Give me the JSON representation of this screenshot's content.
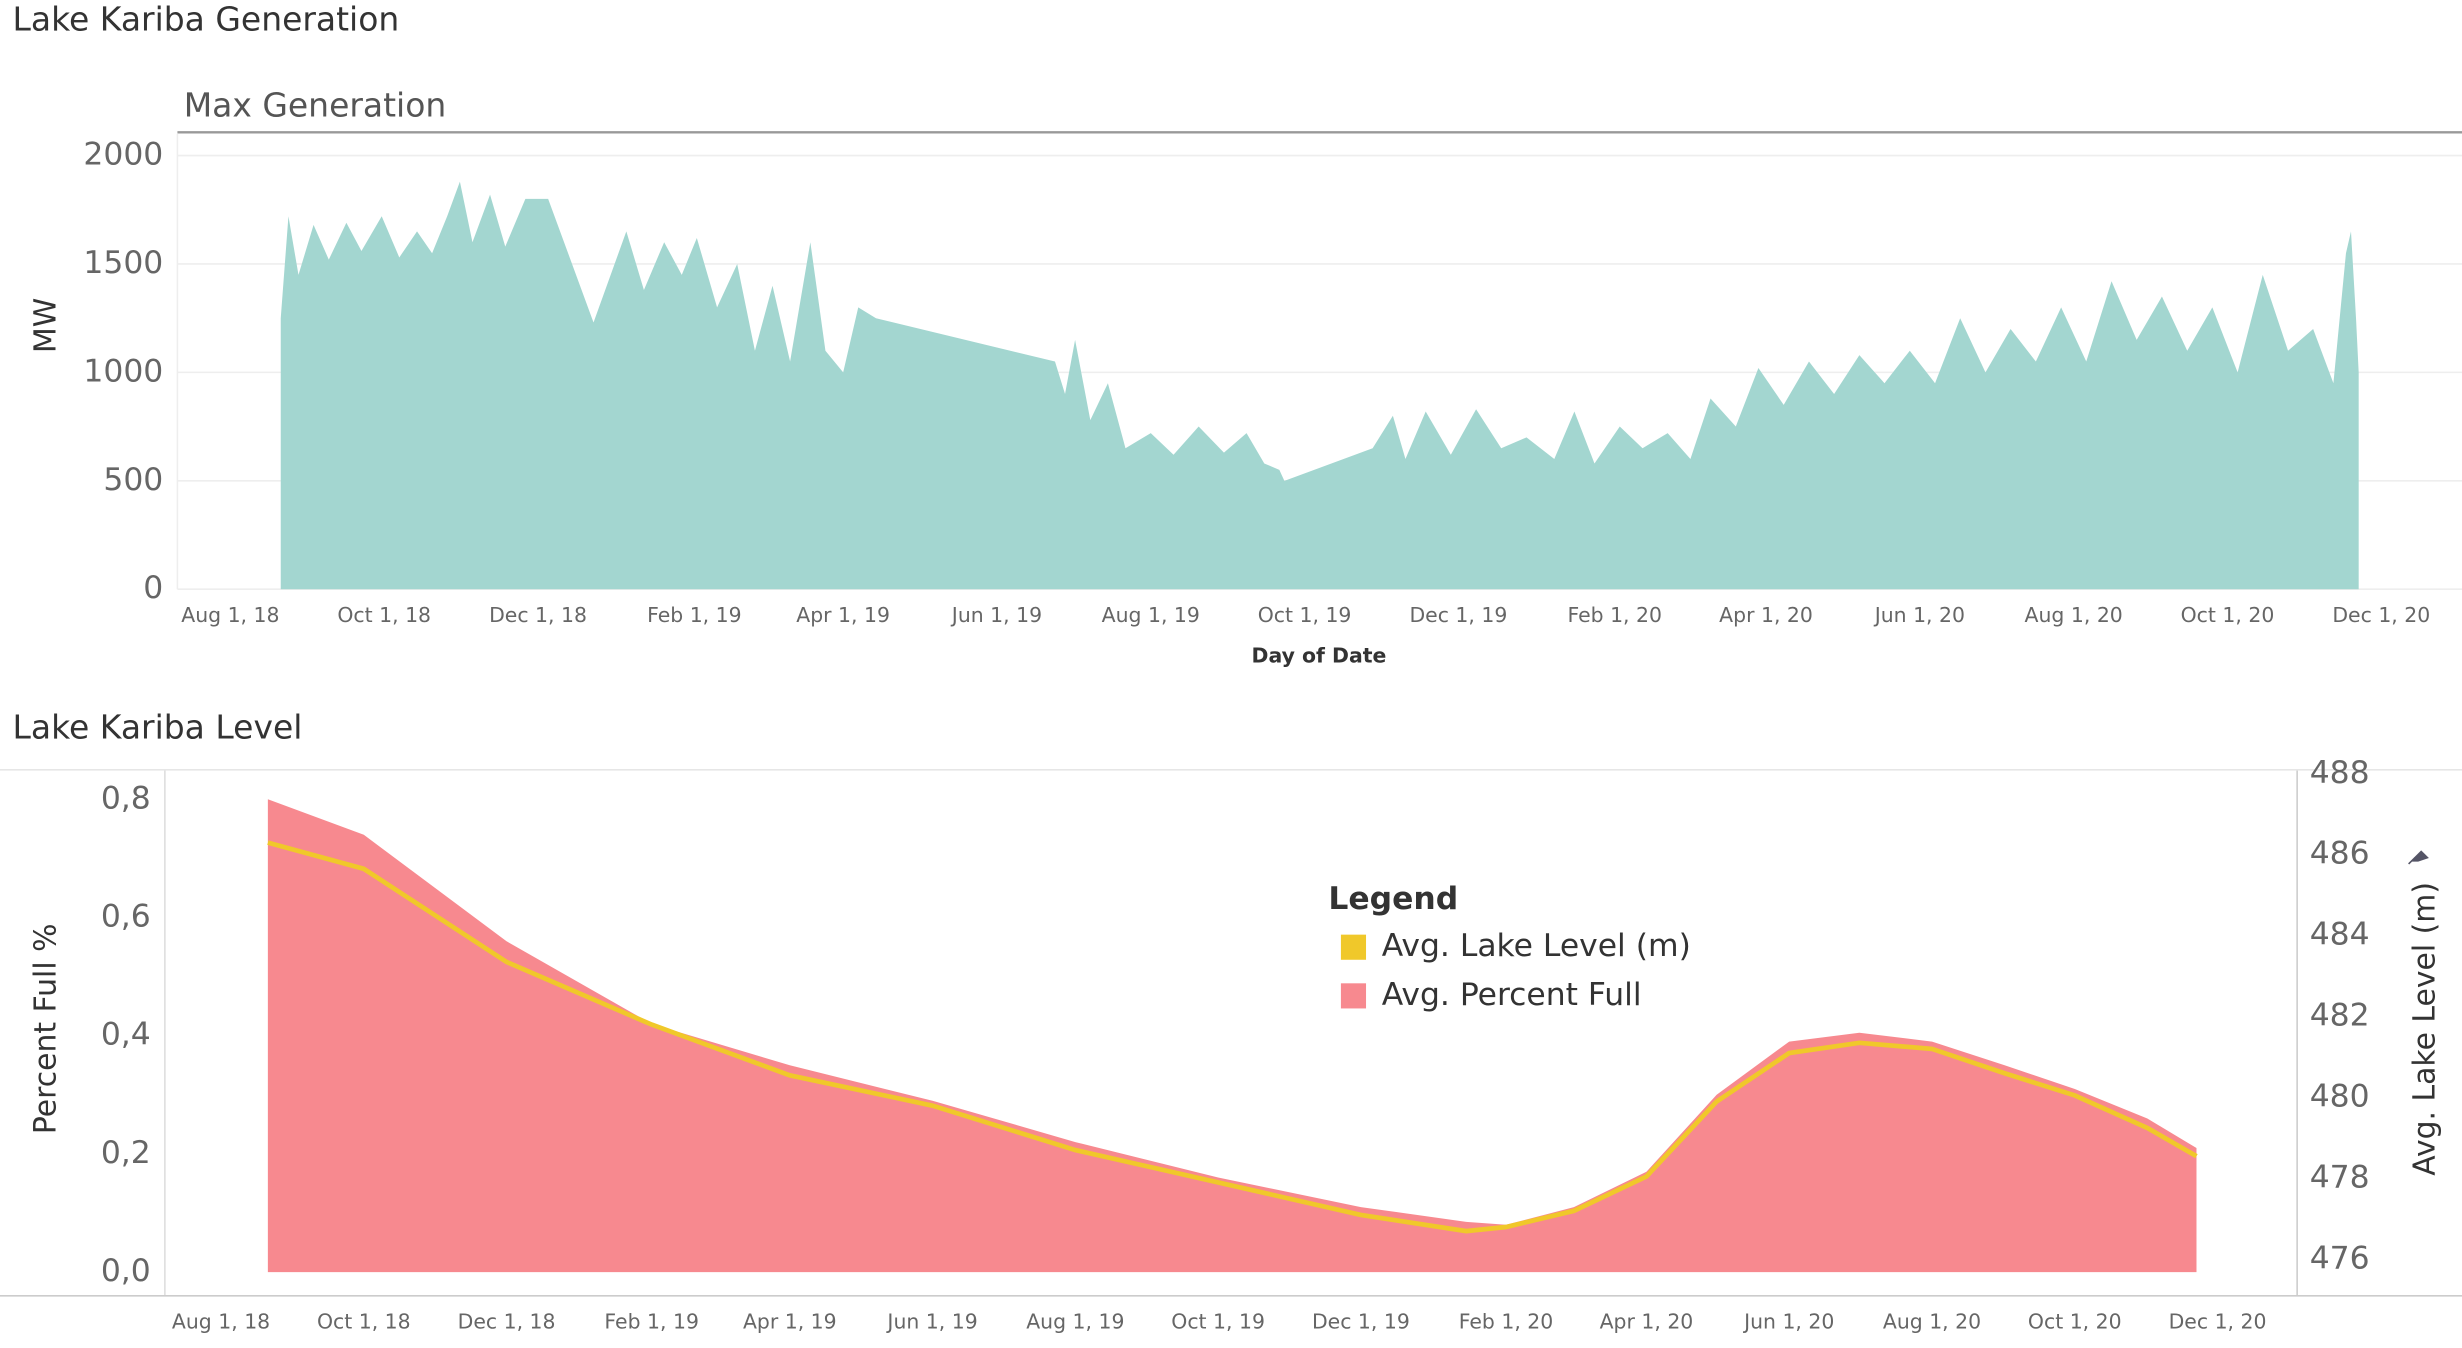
{
  "chart_data": [
    {
      "type": "area",
      "title": "Lake Kariba Generation",
      "subtitle": "Max Generation",
      "y_label": "MW",
      "x_label": "Day of Date",
      "x": [
        "2018-08-21",
        "2018-08-24",
        "2018-08-28",
        "2018-09-03",
        "2018-09-09",
        "2018-09-16",
        "2018-09-22",
        "2018-09-30",
        "2018-10-07",
        "2018-10-14",
        "2018-10-20",
        "2018-10-26",
        "2018-10-31",
        "2018-11-05",
        "2018-11-12",
        "2018-11-18",
        "2018-11-26",
        "2018-12-05",
        "2018-12-23",
        "2019-01-05",
        "2019-01-12",
        "2019-01-20",
        "2019-01-27",
        "2019-02-02",
        "2019-02-10",
        "2019-02-18",
        "2019-02-25",
        "2019-03-04",
        "2019-03-11",
        "2019-03-19",
        "2019-03-25",
        "2019-04-01",
        "2019-04-07",
        "2019-04-14",
        "2019-06-24",
        "2019-06-28",
        "2019-07-02",
        "2019-07-08",
        "2019-07-15",
        "2019-07-22",
        "2019-08-01",
        "2019-08-10",
        "2019-08-20",
        "2019-08-30",
        "2019-09-08",
        "2019-09-15",
        "2019-09-21",
        "2019-09-23",
        "2019-10-28",
        "2019-11-05",
        "2019-11-10",
        "2019-11-18",
        "2019-11-28",
        "2019-12-08",
        "2019-12-18",
        "2019-12-28",
        "2020-01-08",
        "2020-01-16",
        "2020-01-24",
        "2020-02-03",
        "2020-02-12",
        "2020-02-22",
        "2020-03-02",
        "2020-03-10",
        "2020-03-20",
        "2020-03-29",
        "2020-04-08",
        "2020-04-18",
        "2020-04-28",
        "2020-05-08",
        "2020-05-18",
        "2020-05-28",
        "2020-06-07",
        "2020-06-17",
        "2020-06-27",
        "2020-07-07",
        "2020-07-17",
        "2020-07-27",
        "2020-08-06",
        "2020-08-16",
        "2020-08-26",
        "2020-09-05",
        "2020-09-15",
        "2020-09-25",
        "2020-10-05",
        "2020-10-15",
        "2020-10-25",
        "2020-11-04",
        "2020-11-12",
        "2020-11-17",
        "2020-11-19",
        "2020-11-21",
        "2020-11-22"
      ],
      "series": [
        {
          "name": "Max Generation",
          "color": "#a3d6d0",
          "mark": "area",
          "axis": "y",
          "values": [
            1250,
            1720,
            1450,
            1680,
            1520,
            1690,
            1560,
            1720,
            1530,
            1650,
            1550,
            1720,
            1880,
            1600,
            1820,
            1580,
            1800,
            1800,
            1230,
            1650,
            1380,
            1600,
            1450,
            1620,
            1300,
            1500,
            1100,
            1400,
            1050,
            1600,
            1100,
            1000,
            1300,
            1250,
            1050,
            900,
            1150,
            780,
            950,
            650,
            720,
            620,
            750,
            630,
            720,
            580,
            550,
            500,
            650,
            800,
            600,
            820,
            620,
            830,
            650,
            700,
            600,
            820,
            580,
            750,
            650,
            720,
            600,
            880,
            750,
            1020,
            850,
            1050,
            900,
            1080,
            950,
            1100,
            950,
            1250,
            1000,
            1200,
            1050,
            1300,
            1050,
            1420,
            1150,
            1350,
            1100,
            1300,
            1000,
            1450,
            1100,
            1200,
            950,
            1550,
            1650,
            1250,
            1000
          ]
        }
      ],
      "xlim": [
        "2018-07-11",
        "2021-01-02"
      ],
      "xticks": [
        {
          "value": "2018-08-01",
          "label": "Aug 1, 18"
        },
        {
          "value": "2018-10-01",
          "label": "Oct 1, 18"
        },
        {
          "value": "2018-12-01",
          "label": "Dec 1, 18"
        },
        {
          "value": "2019-02-01",
          "label": "Feb 1, 19"
        },
        {
          "value": "2019-04-01",
          "label": "Apr 1, 19"
        },
        {
          "value": "2019-06-01",
          "label": "Jun 1, 19"
        },
        {
          "value": "2019-08-01",
          "label": "Aug 1, 19"
        },
        {
          "value": "2019-10-01",
          "label": "Oct 1, 19"
        },
        {
          "value": "2019-12-01",
          "label": "Dec 1, 19"
        },
        {
          "value": "2020-02-01",
          "label": "Feb 1, 20"
        },
        {
          "value": "2020-04-01",
          "label": "Apr 1, 20"
        },
        {
          "value": "2020-06-01",
          "label": "Jun 1, 20"
        },
        {
          "value": "2020-08-01",
          "label": "Aug 1, 20"
        },
        {
          "value": "2020-10-01",
          "label": "Oct 1, 20"
        },
        {
          "value": "2020-12-01",
          "label": "Dec 1, 20"
        }
      ],
      "ylim": [
        0,
        2100
      ],
      "yticks": [
        0,
        500,
        1000,
        1500,
        2000
      ],
      "grid": true
    },
    {
      "type": "area",
      "title": "Lake Kariba Level",
      "y_label": "Percent Full %",
      "y2_label": "Avg. Lake Level (m)",
      "legend_title": "Legend",
      "legend": "top-center",
      "x": [
        "2018-08-21",
        "2018-10-01",
        "2018-12-01",
        "2019-02-01",
        "2019-04-01",
        "2019-06-01",
        "2019-08-01",
        "2019-10-01",
        "2019-12-01",
        "2020-01-15",
        "2020-02-01",
        "2020-03-01",
        "2020-04-01",
        "2020-05-01",
        "2020-06-01",
        "2020-07-01",
        "2020-08-01",
        "2020-09-01",
        "2020-10-01",
        "2020-11-01",
        "2020-11-22"
      ],
      "series": [
        {
          "name": "Avg. Lake Level (m)",
          "color": "#f0c82a",
          "mark": "line",
          "axis": "y2",
          "values": [
            486.3,
            485.65,
            483.35,
            481.8,
            480.55,
            479.8,
            478.7,
            477.9,
            477.1,
            476.7,
            476.8,
            477.2,
            478.05,
            479.9,
            481.1,
            481.35,
            481.2,
            480.6,
            480.05,
            479.25,
            478.55
          ]
        },
        {
          "name": "Avg. Percent Full",
          "color": "#f7898f",
          "mark": "area",
          "axis": "y",
          "values": [
            0.8,
            0.74,
            0.56,
            0.42,
            0.35,
            0.29,
            0.22,
            0.16,
            0.11,
            0.085,
            0.08,
            0.11,
            0.17,
            0.3,
            0.39,
            0.405,
            0.39,
            0.35,
            0.31,
            0.26,
            0.21
          ]
        }
      ],
      "xlim": [
        "2018-07-08",
        "2021-01-04"
      ],
      "xticks": [
        {
          "value": "2018-08-01",
          "label": "Aug 1, 18"
        },
        {
          "value": "2018-10-01",
          "label": "Oct 1, 18"
        },
        {
          "value": "2018-12-01",
          "label": "Dec 1, 18"
        },
        {
          "value": "2019-02-01",
          "label": "Feb 1, 19"
        },
        {
          "value": "2019-04-01",
          "label": "Apr 1, 19"
        },
        {
          "value": "2019-06-01",
          "label": "Jun 1, 19"
        },
        {
          "value": "2019-08-01",
          "label": "Aug 1, 19"
        },
        {
          "value": "2019-10-01",
          "label": "Oct 1, 19"
        },
        {
          "value": "2019-12-01",
          "label": "Dec 1, 19"
        },
        {
          "value": "2020-02-01",
          "label": "Feb 1, 20"
        },
        {
          "value": "2020-04-01",
          "label": "Apr 1, 20"
        },
        {
          "value": "2020-06-01",
          "label": "Jun 1, 20"
        },
        {
          "value": "2020-08-01",
          "label": "Aug 1, 20"
        },
        {
          "value": "2020-10-01",
          "label": "Oct 1, 20"
        },
        {
          "value": "2020-12-01",
          "label": "Dec 1, 20"
        }
      ],
      "ylim": [
        -0.04,
        0.85
      ],
      "yticks": [
        {
          "value": 0,
          "label": "0,0"
        },
        {
          "value": 0.2,
          "label": "0,2"
        },
        {
          "value": 0.4,
          "label": "0,4"
        },
        {
          "value": 0.6,
          "label": "0,6"
        },
        {
          "value": 0.8,
          "label": "0,8"
        }
      ],
      "y2lim": [
        475.1,
        488.1
      ],
      "y2ticks": [
        476,
        478,
        480,
        482,
        484,
        486,
        488
      ],
      "grid": false
    }
  ]
}
